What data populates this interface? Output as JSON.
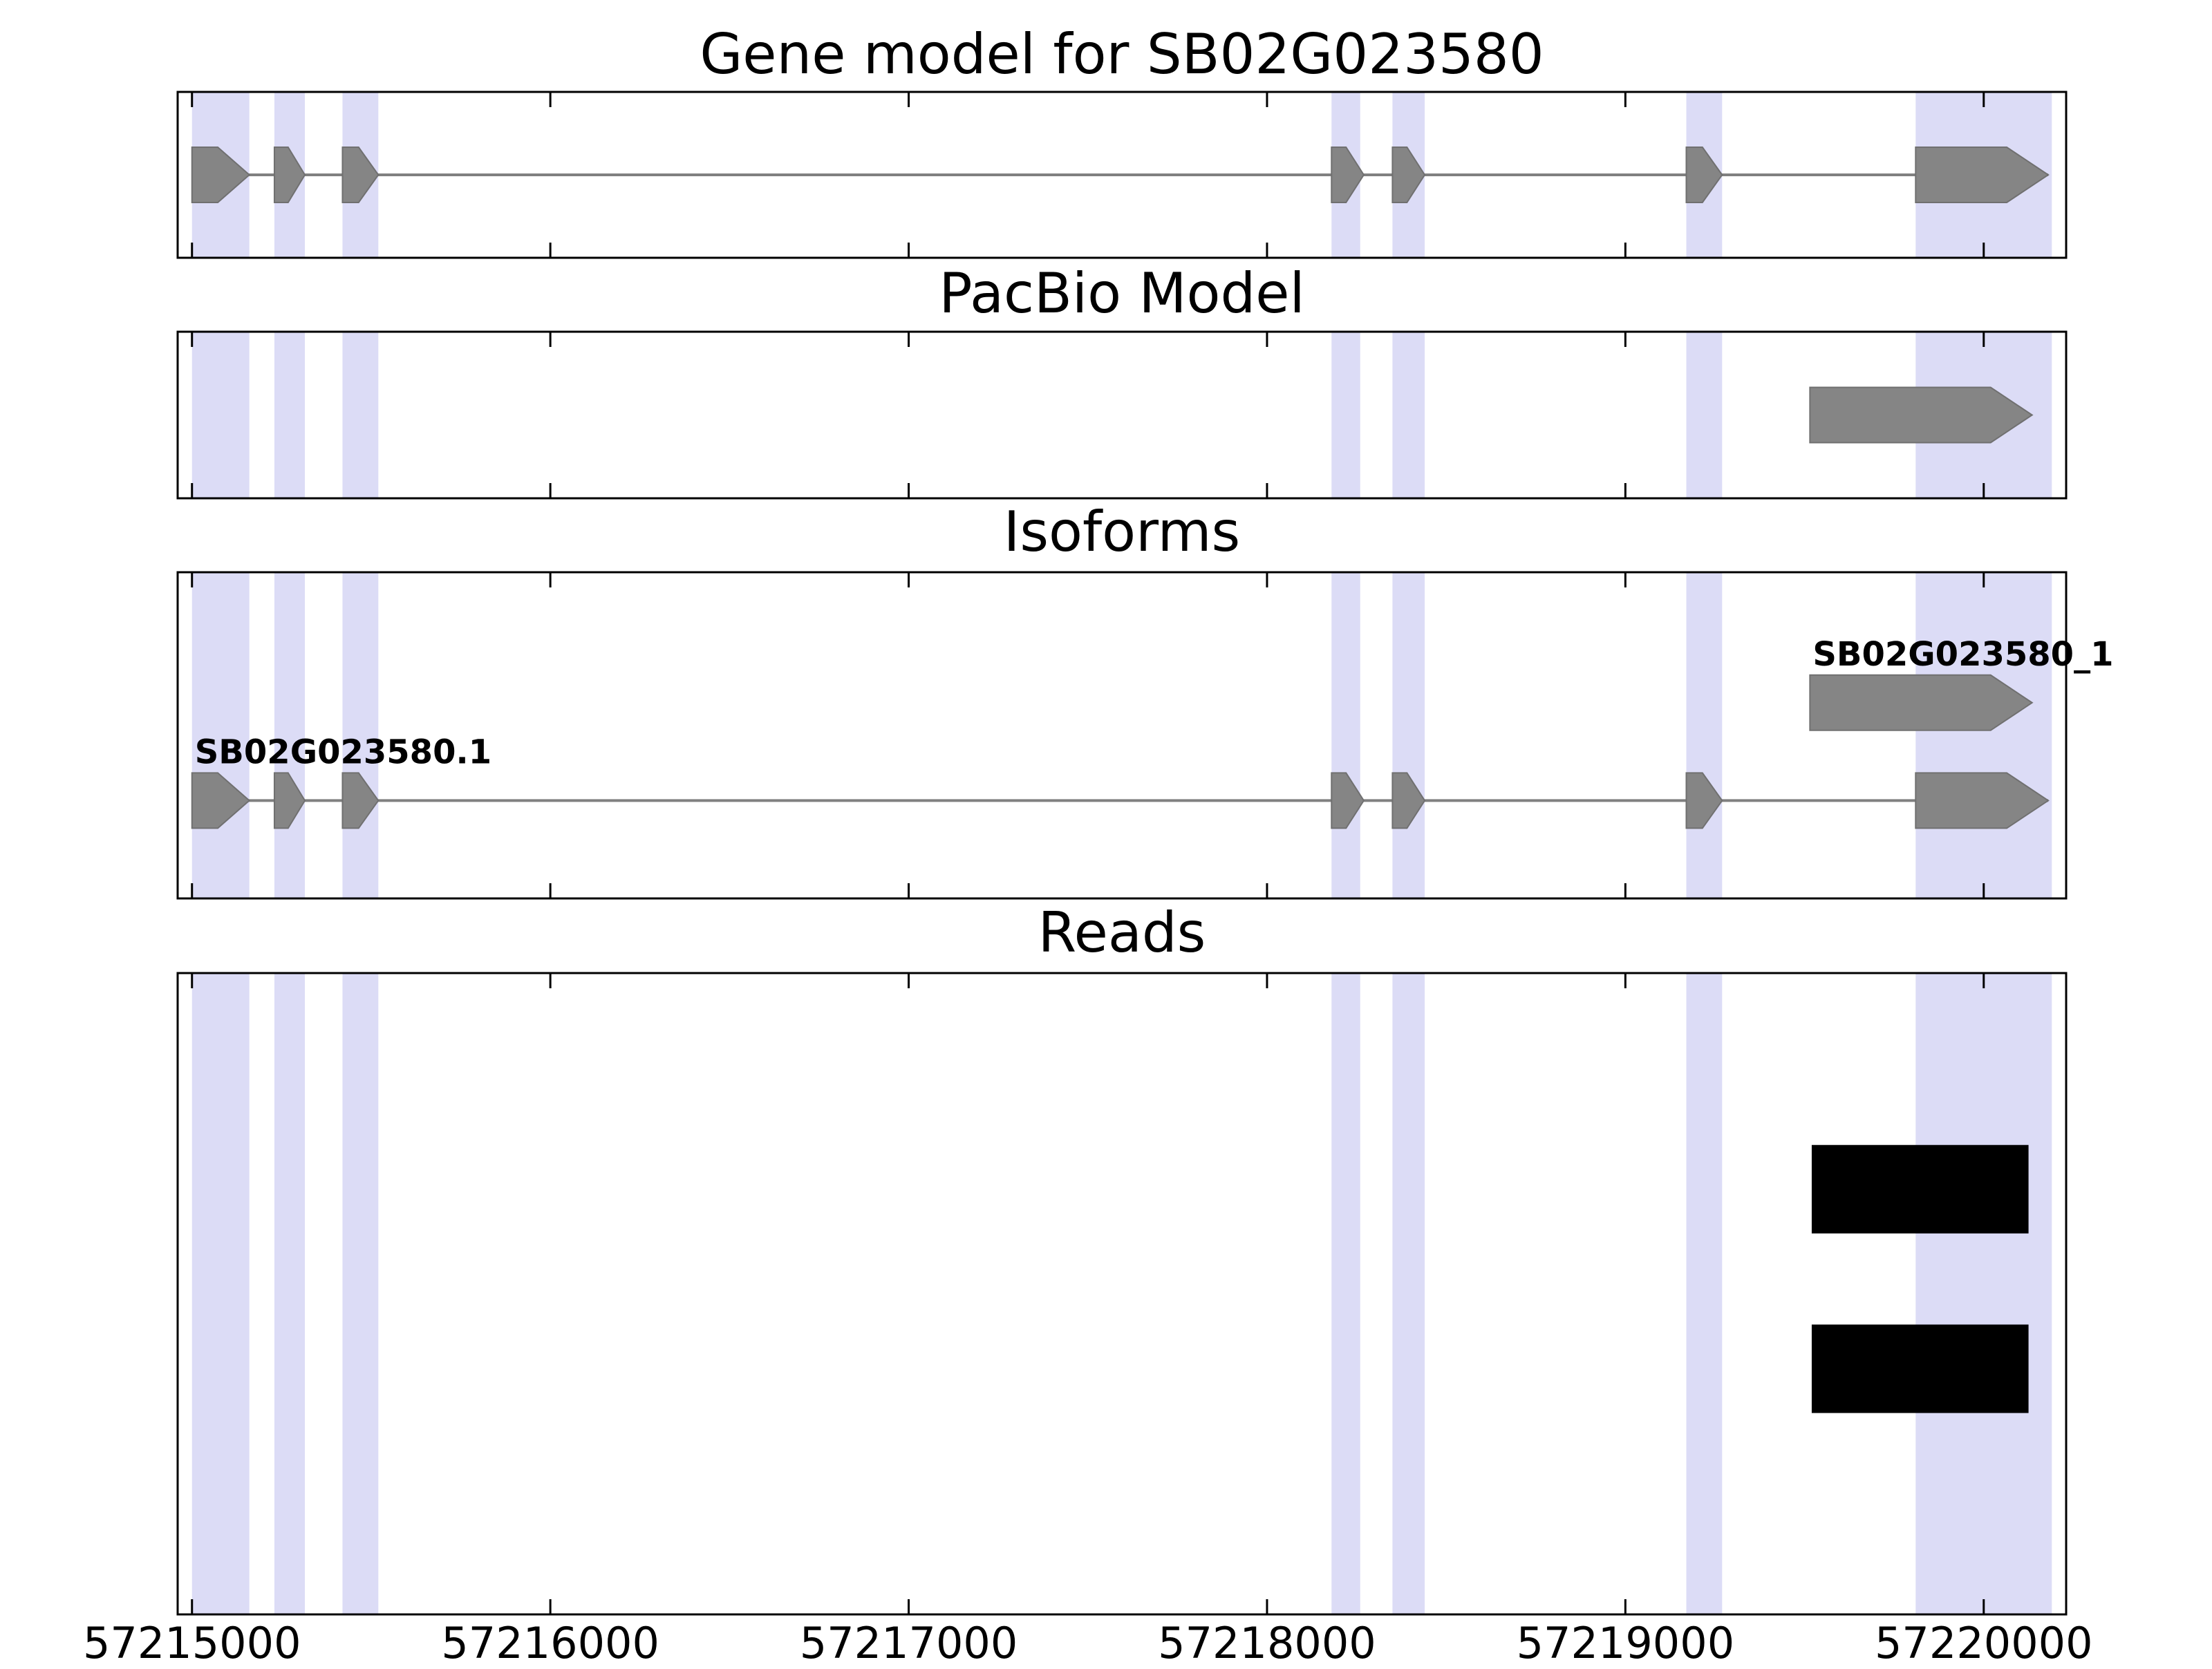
{
  "figure": {
    "background": "#ffffff"
  },
  "chart_data": {
    "type": "genome-tracks",
    "title": "Gene model for SB02G023580",
    "x_axis": {
      "min": 57214960,
      "max": 57220230,
      "ticks": [
        57215000,
        57216000,
        57217000,
        57218000,
        57219000,
        57220000
      ],
      "tick_labels": [
        "57215000",
        "57216000",
        "57217000",
        "57218000",
        "57219000",
        "57220000"
      ]
    },
    "colors": {
      "exon": "#858585",
      "exon_edge": "#707070",
      "intron": "#808080",
      "highlight": "#dcdcf6",
      "read": "#000000",
      "border": "#000000",
      "tick": "#000000"
    },
    "highlights": [
      [
        57215000,
        57215160
      ],
      [
        57215230,
        57215315
      ],
      [
        57215420,
        57215520
      ],
      [
        57218180,
        57218260
      ],
      [
        57218350,
        57218440
      ],
      [
        57219170,
        57219270
      ],
      [
        57219810,
        57220190
      ]
    ],
    "panels": [
      {
        "id": "gene-model",
        "title": "Gene model for SB02G023580",
        "transcripts": [
          {
            "label": "",
            "row": 0.5,
            "strand": "+",
            "exons": [
              [
                57215000,
                57215160
              ],
              [
                57215230,
                57215315
              ],
              [
                57215420,
                57215520
              ],
              [
                57218180,
                57218270
              ],
              [
                57218350,
                57218440
              ],
              [
                57219170,
                57219270
              ],
              [
                57219810,
                57220180
              ]
            ]
          }
        ],
        "reads": []
      },
      {
        "id": "pacbio-model",
        "title": "PacBio Model",
        "transcripts": [
          {
            "label": "",
            "row": 0.5,
            "strand": "+",
            "exons": [
              [
                57219515,
                57220135
              ]
            ]
          }
        ],
        "reads": []
      },
      {
        "id": "isoforms",
        "title": "Isoforms",
        "transcripts": [
          {
            "label": "SB02G023580_1",
            "row": 0.4,
            "strand": "+",
            "exons": [
              [
                57219515,
                57220135
              ]
            ]
          },
          {
            "label": "SB02G023580.1",
            "row": 0.7,
            "strand": "+",
            "exons": [
              [
                57215000,
                57215160
              ],
              [
                57215230,
                57215315
              ],
              [
                57215420,
                57215520
              ],
              [
                57218180,
                57218270
              ],
              [
                57218350,
                57218440
              ],
              [
                57219170,
                57219270
              ],
              [
                57219810,
                57220180
              ]
            ]
          }
        ],
        "reads": []
      },
      {
        "id": "reads",
        "title": "Reads",
        "transcripts": [],
        "reads": [
          {
            "start": 57219520,
            "end": 57220125,
            "row": 0.337
          },
          {
            "start": 57219520,
            "end": 57220125,
            "row": 0.617
          }
        ]
      }
    ]
  }
}
